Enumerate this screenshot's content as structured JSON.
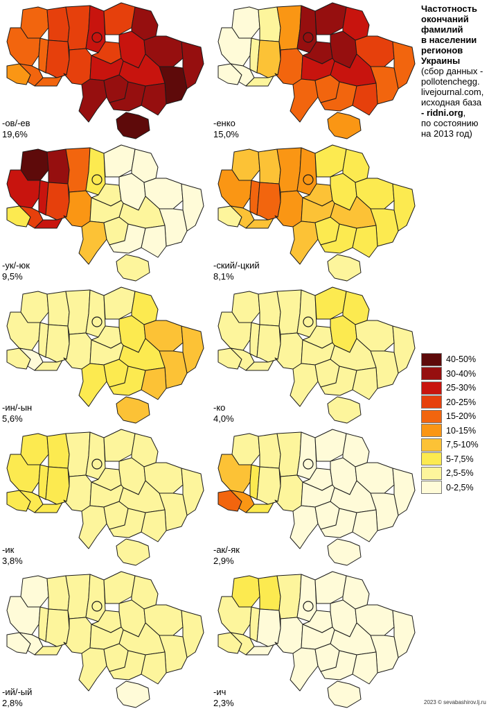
{
  "title": {
    "bold_lines": [
      "Частотность",
      "окончаний",
      "фамилий",
      "в населении",
      "регионов",
      "Украины"
    ],
    "lines": [
      "(сбор данных -",
      "pollotenchegg.",
      "livejournal.com,",
      "исходная база"
    ],
    "source_bold": "- ridni.org",
    "source_suffix": ",",
    "date_lines": [
      "по состоянию",
      "на 2013 год)"
    ]
  },
  "legend": [
    {
      "label": "40-50%",
      "color": "#5e0a0a"
    },
    {
      "label": "30-40%",
      "color": "#960f0f"
    },
    {
      "label": "25-30%",
      "color": "#c8140e"
    },
    {
      "label": "20-25%",
      "color": "#e6400c"
    },
    {
      "label": "15-20%",
      "color": "#f2650e"
    },
    {
      "label": "10-15%",
      "color": "#fa9614"
    },
    {
      "label": "7,5-10%",
      "color": "#fcc236"
    },
    {
      "label": "5-7,5%",
      "color": "#fcea50"
    },
    {
      "label": "2,5-5%",
      "color": "#fdf59c"
    },
    {
      "label": "0-2,5%",
      "color": "#fffbd8"
    }
  ],
  "maps": [
    {
      "suffix": "-ов/-ев",
      "percent": "19,6%",
      "classes": {
        "Zakarpattia": 5,
        "Lviv": 4,
        "Volyn": 4,
        "Rivne": 3,
        "Ternopil": 4,
        "IvanoFrankivsk": 4,
        "Chernivtsi": 4,
        "Khmelnytskyi": 3,
        "Zhytomyr": 3,
        "Kyiv": 2,
        "Chernihiv": 3,
        "Sumy": 1,
        "Vinnytsia": 3,
        "Cherkasy": 3,
        "Poltava": 2,
        "Kharkiv": 1,
        "Luhansk": 1,
        "Donetsk": 0,
        "Dnipro": 2,
        "Kirovohrad": 2,
        "Odesa": 1,
        "Mykolaiv": 1,
        "Kherson": 1,
        "Zaporizhzhia": 1,
        "Crimea": 0
      }
    },
    {
      "suffix": "-енко",
      "percent": "15,0%",
      "classes": {
        "Zakarpattia": 9,
        "Lviv": 9,
        "Volyn": 9,
        "Rivne": 8,
        "Ternopil": 8,
        "IvanoFrankivsk": 9,
        "Chernivtsi": 8,
        "Khmelnytskyi": 6,
        "Zhytomyr": 5,
        "Kyiv": 1,
        "Chernihiv": 1,
        "Sumy": 2,
        "Vinnytsia": 4,
        "Cherkasy": 1,
        "Poltava": 1,
        "Kharkiv": 3,
        "Luhansk": 4,
        "Donetsk": 4,
        "Dnipro": 2,
        "Kirovohrad": 2,
        "Odesa": 4,
        "Mykolaiv": 4,
        "Kherson": 4,
        "Zaporizhzhia": 3,
        "Crimea": 5
      }
    },
    {
      "suffix": "-ук/-юк",
      "percent": "9,5%",
      "classes": {
        "Zakarpattia": 7,
        "Lviv": 2,
        "Volyn": 0,
        "Rivne": 1,
        "Ternopil": 2,
        "IvanoFrankivsk": 3,
        "Chernivtsi": 2,
        "Khmelnytskyi": 3,
        "Zhytomyr": 4,
        "Kyiv": 7,
        "Chernihiv": 9,
        "Sumy": 9,
        "Vinnytsia": 5,
        "Cherkasy": 8,
        "Poltava": 9,
        "Kharkiv": 9,
        "Luhansk": 9,
        "Donetsk": 9,
        "Dnipro": 8,
        "Kirovohrad": 8,
        "Odesa": 6,
        "Mykolaiv": 8,
        "Kherson": 9,
        "Zaporizhzhia": 9,
        "Crimea": 8
      }
    },
    {
      "suffix": "-ский/-цкий",
      "percent": "8,1%",
      "classes": {
        "Zakarpattia": 8,
        "Lviv": 5,
        "Volyn": 6,
        "Rivne": 6,
        "Ternopil": 4,
        "IvanoFrankivsk": 6,
        "Chernivtsi": 6,
        "Khmelnytskyi": 4,
        "Zhytomyr": 5,
        "Kyiv": 5,
        "Chernihiv": 7,
        "Sumy": 7,
        "Vinnytsia": 5,
        "Cherkasy": 6,
        "Poltava": 7,
        "Kharkiv": 7,
        "Luhansk": 7,
        "Donetsk": 7,
        "Dnipro": 6,
        "Kirovohrad": 6,
        "Odesa": 6,
        "Mykolaiv": 7,
        "Kherson": 7,
        "Zaporizhzhia": 7,
        "Crimea": 8
      }
    },
    {
      "suffix": "-ин/-ын",
      "percent": "5,6%",
      "classes": {
        "Zakarpattia": 8,
        "Lviv": 8,
        "Volyn": 8,
        "Rivne": 8,
        "Ternopil": 8,
        "IvanoFrankivsk": 9,
        "Chernivtsi": 8,
        "Khmelnytskyi": 8,
        "Zhytomyr": 8,
        "Kyiv": 8,
        "Chernihiv": 8,
        "Sumy": 7,
        "Vinnytsia": 8,
        "Cherkasy": 8,
        "Poltava": 7,
        "Kharkiv": 6,
        "Luhansk": 6,
        "Donetsk": 6,
        "Dnipro": 7,
        "Kirovohrad": 8,
        "Odesa": 7,
        "Mykolaiv": 7,
        "Kherson": 7,
        "Zaporizhzhia": 6,
        "Crimea": 6
      }
    },
    {
      "suffix": "-ко",
      "percent": "4,0%",
      "classes": {
        "Zakarpattia": 8,
        "Lviv": 8,
        "Volyn": 8,
        "Rivne": 8,
        "Ternopil": 8,
        "IvanoFrankivsk": 8,
        "Chernivtsi": 8,
        "Khmelnytskyi": 8,
        "Zhytomyr": 8,
        "Kyiv": 8,
        "Chernihiv": 7,
        "Sumy": 7,
        "Vinnytsia": 8,
        "Cherkasy": 8,
        "Poltava": 7,
        "Kharkiv": 8,
        "Luhansk": 8,
        "Donetsk": 8,
        "Dnipro": 8,
        "Kirovohrad": 8,
        "Odesa": 8,
        "Mykolaiv": 8,
        "Kherson": 8,
        "Zaporizhzhia": 8,
        "Crimea": 8
      }
    },
    {
      "suffix": "-ик",
      "percent": "3,8%",
      "classes": {
        "Zakarpattia": 7,
        "Lviv": 7,
        "Volyn": 7,
        "Rivne": 7,
        "Ternopil": 7,
        "IvanoFrankivsk": 7,
        "Chernivtsi": 7,
        "Khmelnytskyi": 7,
        "Zhytomyr": 8,
        "Kyiv": 8,
        "Chernihiv": 8,
        "Sumy": 8,
        "Vinnytsia": 8,
        "Cherkasy": 8,
        "Poltava": 8,
        "Kharkiv": 8,
        "Luhansk": 8,
        "Donetsk": 8,
        "Dnipro": 8,
        "Kirovohrad": 8,
        "Odesa": 8,
        "Mykolaiv": 8,
        "Kherson": 8,
        "Zaporizhzhia": 8,
        "Crimea": 8
      }
    },
    {
      "suffix": "-ак/-як",
      "percent": "2,9%",
      "classes": {
        "Zakarpattia": 4,
        "Lviv": 6,
        "Volyn": 8,
        "Rivne": 8,
        "Ternopil": 7,
        "IvanoFrankivsk": 5,
        "Chernivtsi": 7,
        "Khmelnytskyi": 8,
        "Zhytomyr": 8,
        "Kyiv": 9,
        "Chernihiv": 9,
        "Sumy": 9,
        "Vinnytsia": 8,
        "Cherkasy": 9,
        "Poltava": 9,
        "Kharkiv": 9,
        "Luhansk": 9,
        "Donetsk": 9,
        "Dnipro": 9,
        "Kirovohrad": 9,
        "Odesa": 9,
        "Mykolaiv": 9,
        "Kherson": 9,
        "Zaporizhzhia": 9,
        "Crimea": 9
      }
    },
    {
      "suffix": "-ий/-ый",
      "percent": "2,8%",
      "classes": {
        "Zakarpattia": 9,
        "Lviv": 9,
        "Volyn": 9,
        "Rivne": 8,
        "Ternopil": 8,
        "IvanoFrankivsk": 9,
        "Chernivtsi": 8,
        "Khmelnytskyi": 8,
        "Zhytomyr": 8,
        "Kyiv": 8,
        "Chernihiv": 8,
        "Sumy": 8,
        "Vinnytsia": 8,
        "Cherkasy": 8,
        "Poltava": 8,
        "Kharkiv": 8,
        "Luhansk": 8,
        "Donetsk": 8,
        "Dnipro": 8,
        "Kirovohrad": 8,
        "Odesa": 8,
        "Mykolaiv": 8,
        "Kherson": 8,
        "Zaporizhzhia": 8,
        "Crimea": 9
      }
    },
    {
      "suffix": "-ич",
      "percent": "2,3%",
      "classes": {
        "Zakarpattia": 8,
        "Lviv": 8,
        "Volyn": 7,
        "Rivne": 7,
        "Ternopil": 8,
        "IvanoFrankivsk": 8,
        "Chernivtsi": 9,
        "Khmelnytskyi": 9,
        "Zhytomyr": 8,
        "Kyiv": 9,
        "Chernihiv": 9,
        "Sumy": 9,
        "Vinnytsia": 9,
        "Cherkasy": 9,
        "Poltava": 9,
        "Kharkiv": 9,
        "Luhansk": 9,
        "Donetsk": 9,
        "Dnipro": 9,
        "Kirovohrad": 9,
        "Odesa": 9,
        "Mykolaiv": 9,
        "Kherson": 9,
        "Zaporizhzhia": 9,
        "Crimea": 9
      }
    }
  ],
  "credit": "2023 © sevabashirov.lj.ru"
}
